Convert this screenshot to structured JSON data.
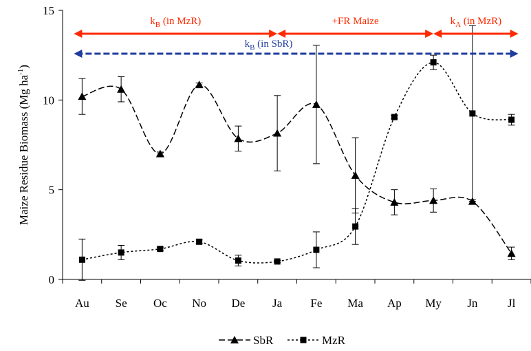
{
  "chart_data": {
    "type": "line",
    "ylabel": [
      "Maize Residue Biomass (Mg ha",
      "-1",
      ")"
    ],
    "categories": [
      "Au",
      "Se",
      "Oc",
      "No",
      "De",
      "Ja",
      "Fe",
      "Ma",
      "Ap",
      "My",
      "Jn",
      "Jl"
    ],
    "ylim": [
      0,
      15
    ],
    "yticks": [
      0,
      5,
      10,
      15
    ],
    "legend": "bottom",
    "series": [
      {
        "name": "SbR",
        "color": "#000000",
        "marker": "triangle",
        "dash": "dashed",
        "values": [
          10.2,
          10.6,
          7.0,
          10.85,
          7.85,
          8.15,
          9.75,
          5.8,
          4.3,
          4.4,
          4.35,
          1.45
        ],
        "errors": [
          1.0,
          0.7,
          0.1,
          0.1,
          0.7,
          2.1,
          3.3,
          2.1,
          0.7,
          0.65,
          0.1,
          0.35
        ]
      },
      {
        "name": "MzR",
        "color": "#000000",
        "marker": "square",
        "dash": "dotted",
        "values": [
          1.1,
          1.5,
          1.7,
          2.1,
          1.05,
          1.0,
          1.65,
          2.95,
          9.05,
          12.1,
          9.25,
          8.9
        ],
        "errors": [
          1.15,
          0.4,
          0.1,
          0.1,
          0.3,
          0.05,
          1.0,
          1.0,
          0.1,
          0.4,
          4.9,
          0.3
        ]
      }
    ],
    "annotations": [
      {
        "label": [
          "k",
          "B",
          " (in MzR)"
        ],
        "start": "Au",
        "end": "Ja",
        "color": "#ff2a00",
        "style": "solid"
      },
      {
        "label": [
          "+FR Maize"
        ],
        "start": "Ja",
        "end": "My",
        "color": "#ff2a00",
        "style": "solid"
      },
      {
        "label": [
          "k",
          "A",
          " (in MzR)"
        ],
        "start": "My",
        "end": "Jl",
        "color": "#ff2a00",
        "style": "solid"
      },
      {
        "label": [
          "k",
          "B",
          " (in SbR)"
        ],
        "start": "Au",
        "end": "Jl",
        "color": "#1f3c9e",
        "style": "dashed"
      }
    ]
  }
}
